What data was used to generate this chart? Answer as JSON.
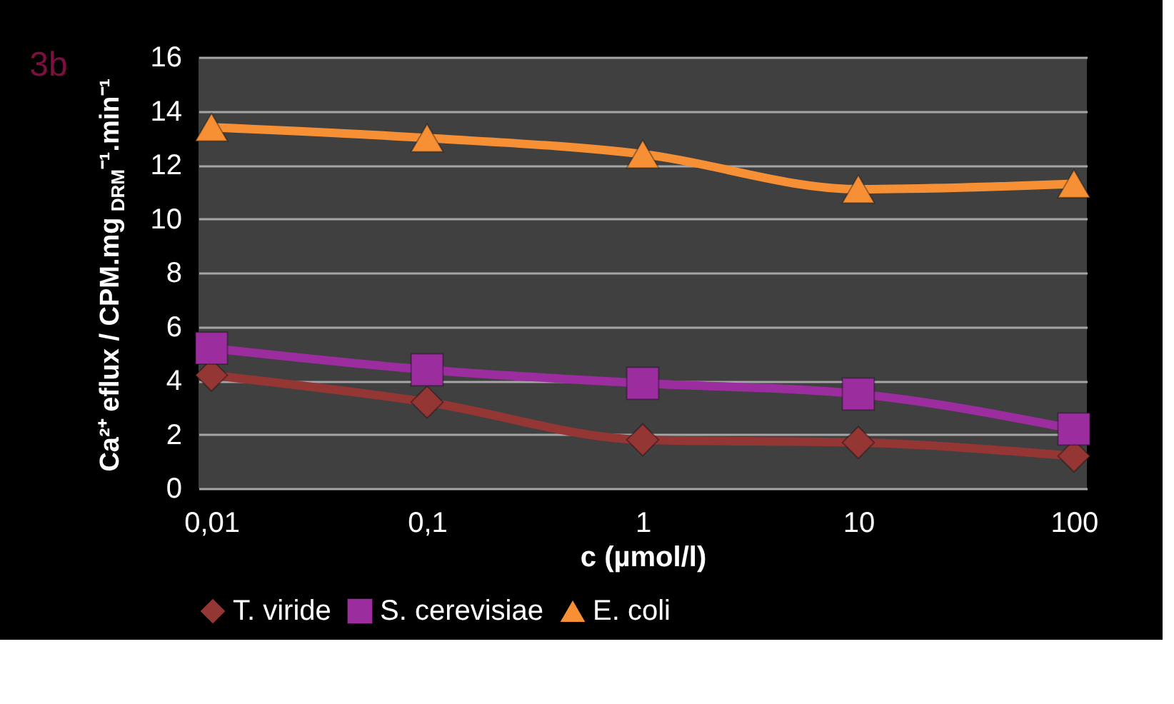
{
  "chart_data": {
    "type": "line",
    "xlabel": "c (µmol/l)",
    "ylabel": "Ca²⁺ eflux / CPM.mg$_{DRM}$⁻¹.min⁻¹",
    "annotations": [
      "3b"
    ],
    "categories": [
      "0,01",
      "0,1",
      "1",
      "10",
      "100"
    ],
    "series": [
      {
        "name": "T. viride",
        "color": "#943634",
        "marker": "diamond",
        "values": [
          4.2,
          3.2,
          1.8,
          1.7,
          1.2
        ]
      },
      {
        "name": "S. cerevisiae",
        "color": "#9b2d9f",
        "marker": "square",
        "values": [
          5.2,
          4.4,
          3.9,
          3.5,
          2.2
        ]
      },
      {
        "name": "E. coli",
        "color": "#f79035",
        "marker": "triangle",
        "values": [
          13.4,
          13.0,
          12.4,
          11.1,
          11.3
        ]
      }
    ],
    "ylim": [
      0,
      16
    ],
    "yticks": [
      0,
      2,
      4,
      6,
      8,
      10,
      12,
      14,
      16
    ],
    "grid": "y",
    "legend": "bottom"
  }
}
